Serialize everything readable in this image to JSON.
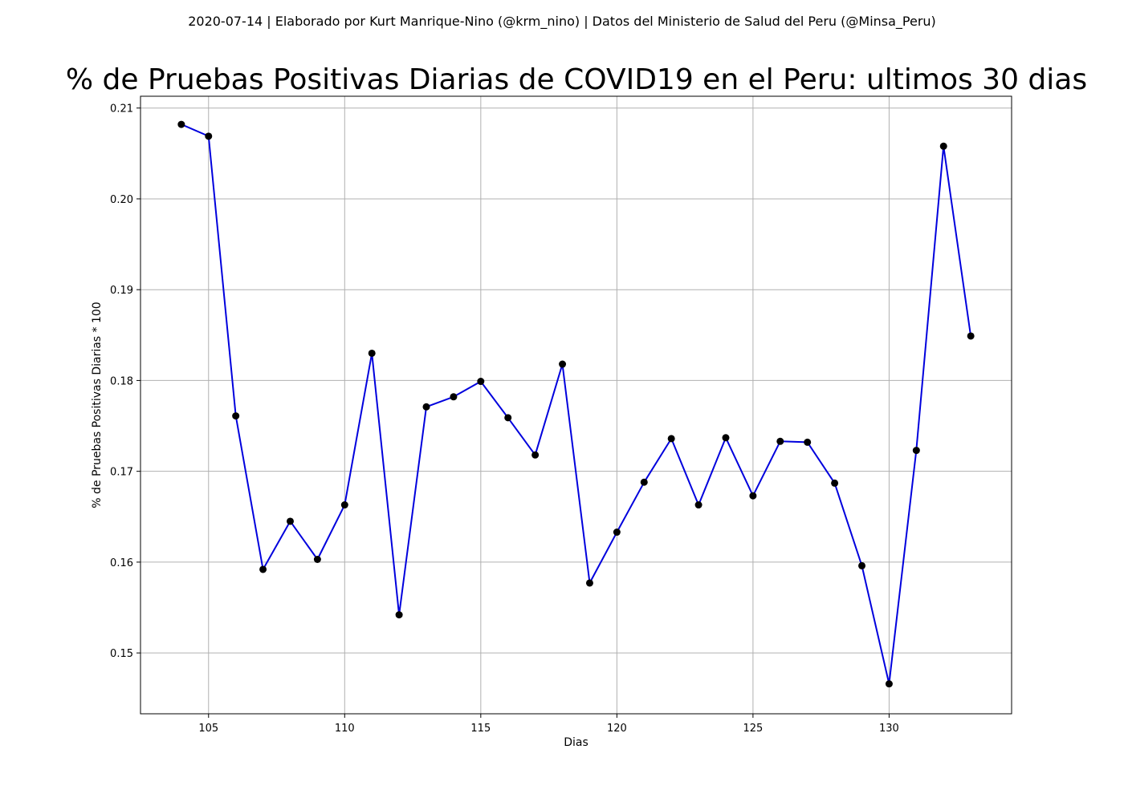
{
  "chart_data": {
    "type": "line",
    "suptitle": "2020-07-14 | Elaborado por Kurt Manrique-Nino (@krm_nino) | Datos del Ministerio de Salud del Peru (@Minsa_Peru)",
    "title": "% de Pruebas Positivas Diarias de COVID19 en el Peru: ultimos 30 dias",
    "xlabel": "Dias",
    "ylabel": "% de Pruebas Positivas Diarias * 100",
    "xlim": [
      102.5,
      134.5
    ],
    "ylim": [
      0.1433,
      0.2113
    ],
    "xticks": [
      105,
      110,
      115,
      120,
      125,
      130
    ],
    "xtick_labels": [
      "105",
      "110",
      "115",
      "120",
      "125",
      "130"
    ],
    "yticks": [
      0.15,
      0.16,
      0.17,
      0.18,
      0.19,
      0.2,
      0.21
    ],
    "ytick_labels": [
      "0.15",
      "0.16",
      "0.17",
      "0.18",
      "0.19",
      "0.20",
      "0.21"
    ],
    "grid": true,
    "line_color": "#0000dd",
    "marker_color": "#000000",
    "x": [
      104,
      105,
      106,
      107,
      108,
      109,
      110,
      111,
      112,
      113,
      114,
      115,
      116,
      117,
      118,
      119,
      120,
      121,
      122,
      123,
      124,
      125,
      126,
      127,
      128,
      129,
      130,
      131,
      132,
      133
    ],
    "y": [
      0.2082,
      0.2069,
      0.1761,
      0.1592,
      0.1645,
      0.1603,
      0.1663,
      0.183,
      0.1542,
      0.1771,
      0.1782,
      0.1799,
      0.1759,
      0.1718,
      0.1818,
      0.1577,
      0.1633,
      0.1688,
      0.1736,
      0.1663,
      0.1737,
      0.1673,
      0.1733,
      0.1732,
      0.1687,
      0.1596,
      0.1466,
      0.1723,
      0.2058,
      0.1849
    ]
  }
}
